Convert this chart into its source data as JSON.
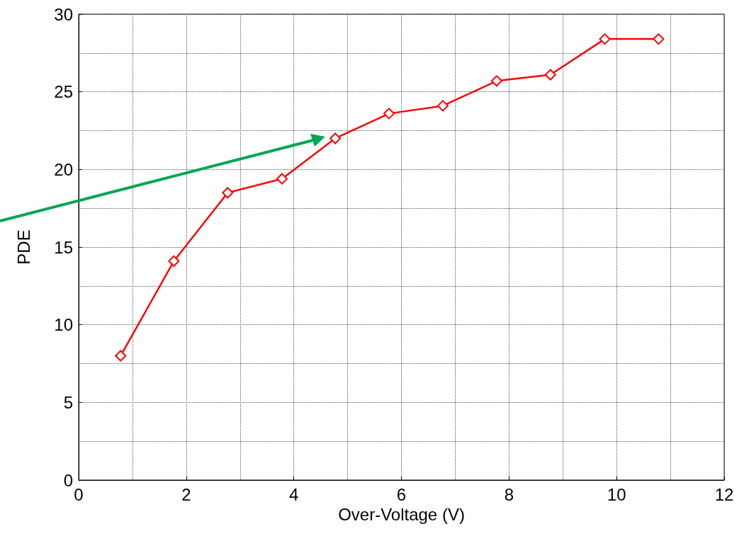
{
  "chart_data": {
    "type": "line",
    "xlabel": "Over-Voltage (V)",
    "ylabel": "PDE",
    "x": [
      0.78,
      1.77,
      2.77,
      3.78,
      4.77,
      5.77,
      6.77,
      7.77,
      8.77,
      9.78,
      10.78
    ],
    "series": [
      {
        "color": "#ff0000",
        "values": [
          8.0,
          14.1,
          18.5,
          19.4,
          22.0,
          23.6,
          24.1,
          25.7,
          26.1,
          28.4,
          28.4
        ]
      }
    ],
    "xlim": [
      0,
      12
    ],
    "xticks": [
      0,
      2,
      4,
      6,
      8,
      10,
      12
    ],
    "ylim": [
      0,
      30
    ],
    "yticks": [
      0,
      5,
      10,
      15,
      20,
      25,
      30
    ],
    "grid": true,
    "marker": "diamond",
    "line_style": "solid"
  }
}
